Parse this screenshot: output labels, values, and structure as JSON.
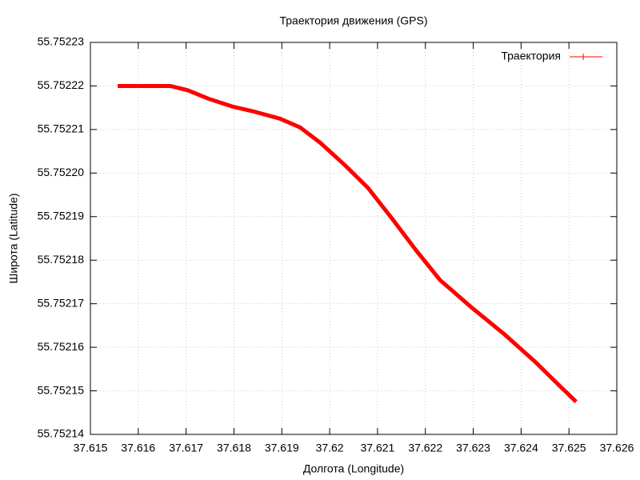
{
  "chart_data": {
    "type": "line",
    "title": "Траектория движения (GPS)",
    "x_label": "Долгота (Longitude)",
    "y_label": "Широта (Latitude)",
    "x": [
      37.61557,
      37.61609,
      37.61667,
      37.61704,
      37.61746,
      37.61796,
      37.61846,
      37.61896,
      37.61938,
      37.6198,
      37.6203,
      37.6208,
      37.6213,
      37.62181,
      37.62231,
      37.62298,
      37.62365,
      37.62431,
      37.62482,
      37.62515
    ],
    "series": [
      {
        "name": "Траектория",
        "color": "#ff0000",
        "values": [
          55.75222,
          55.75222,
          55.75222,
          55.752219,
          55.7522171,
          55.7522153,
          55.752214,
          55.7522125,
          55.7522105,
          55.752207,
          55.752202,
          55.7521966,
          55.7521896,
          55.7521822,
          55.7521754,
          55.752169,
          55.752163,
          55.7521565,
          55.752151,
          55.7521475
        ]
      }
    ],
    "xlim": [
      37.615,
      37.626
    ],
    "xticks": [
      37.615,
      37.616,
      37.617,
      37.618,
      37.619,
      37.62,
      37.621,
      37.622,
      37.623,
      37.624,
      37.625,
      37.626
    ],
    "ylim": [
      55.75214,
      55.75223
    ],
    "yticks": [
      55.75214,
      55.75215,
      55.75216,
      55.75217,
      55.75218,
      55.75219,
      {
        "value": 55.7522,
        "label": "55.75220"
      },
      55.75221,
      55.75222,
      55.75223
    ],
    "grid": true,
    "legend": "top-right"
  }
}
